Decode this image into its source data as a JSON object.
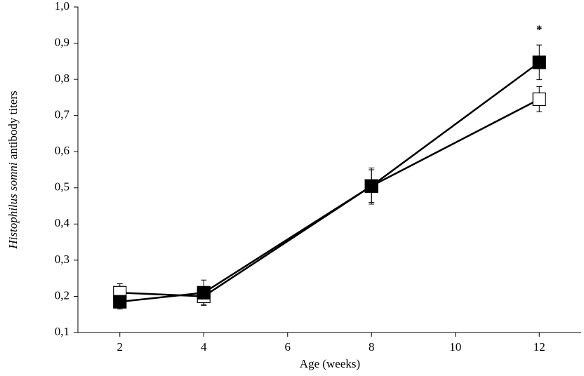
{
  "chart_data": {
    "type": "line",
    "xlabel": "Age (weeks)",
    "ylabel": [
      "Histophilus somni",
      "antibody titers"
    ],
    "x": [
      2,
      4,
      8,
      12
    ],
    "series": [
      {
        "color": "#ffffff",
        "values": [
          0.21,
          0.2,
          0.505,
          0.745
        ],
        "errors": [
          0.025,
          0.022,
          0.045,
          0.035
        ]
      },
      {
        "color": "#000000",
        "values": [
          0.185,
          0.21,
          0.505,
          0.847
        ],
        "errors": [
          0.02,
          0.035,
          0.05,
          0.048
        ]
      }
    ],
    "annotations": [
      {
        "text": "*",
        "x": 12,
        "y": 0.935
      }
    ],
    "xlim": [
      1,
      13
    ],
    "xticks": [
      2,
      4,
      6,
      8,
      10,
      12
    ],
    "ylim": [
      0.1,
      1.0
    ],
    "yticks": [
      {
        "value": 0.1,
        "label": "0,1"
      },
      {
        "value": 0.2,
        "label": "0,2"
      },
      {
        "value": 0.3,
        "label": "0,3"
      },
      {
        "value": 0.4,
        "label": "0,4"
      },
      {
        "value": 0.5,
        "label": "0,5"
      },
      {
        "value": 0.6,
        "label": "0,6"
      },
      {
        "value": 0.7,
        "label": "0,7"
      },
      {
        "value": 0.8,
        "label": "0,8"
      },
      {
        "value": 0.9,
        "label": "0,9"
      },
      {
        "value": 1.0,
        "label": "1,0"
      }
    ],
    "grid": false
  }
}
